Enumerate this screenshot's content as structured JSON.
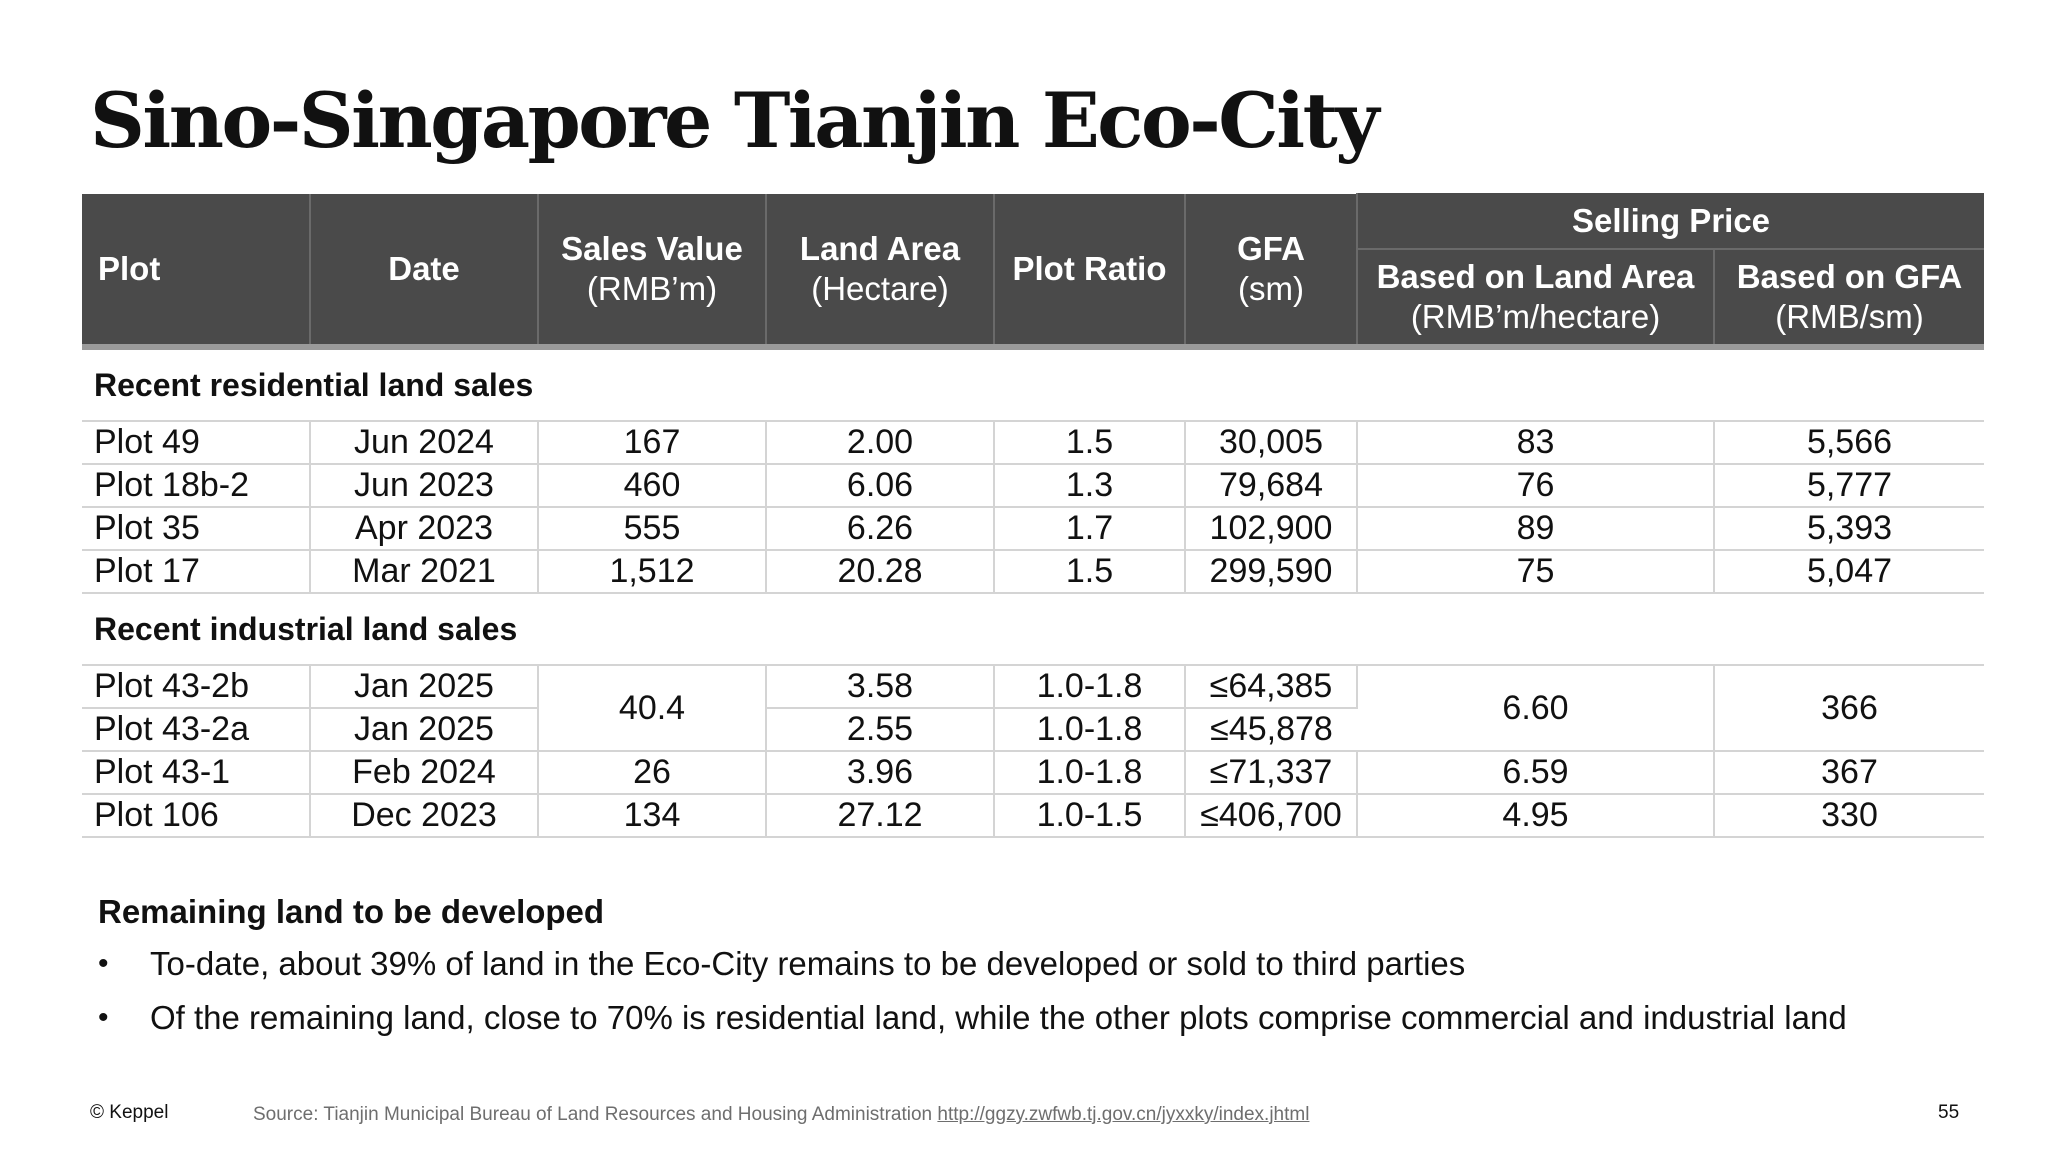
{
  "title": "Sino-Singapore Tianjin Eco-City",
  "table": {
    "headers": {
      "plot": "Plot",
      "date": "Date",
      "sales_value": "Sales Value",
      "sales_value_unit": "(RMB’m)",
      "land_area": "Land Area",
      "land_area_unit": "(Hectare)",
      "plot_ratio": "Plot Ratio",
      "gfa": "GFA",
      "gfa_unit": "(sm)",
      "selling_price": "Selling Price",
      "based_on_land_area": "Based on Land Area",
      "based_on_land_area_unit": "(RMB’m/hectare)",
      "based_on_gfa": "Based on GFA",
      "based_on_gfa_unit": "(RMB/sm)"
    },
    "residential_label": "Recent residential land sales",
    "residential": [
      {
        "plot": "Plot 49",
        "date": "Jun 2024",
        "sales": "167",
        "area": "2.00",
        "ratio": "1.5",
        "gfa": "30,005",
        "price_area": "83",
        "price_gfa": "5,566"
      },
      {
        "plot": "Plot 18b-2",
        "date": "Jun 2023",
        "sales": "460",
        "area": "6.06",
        "ratio": "1.3",
        "gfa": "79,684",
        "price_area": "76",
        "price_gfa": "5,777"
      },
      {
        "plot": "Plot 35",
        "date": "Apr 2023",
        "sales": "555",
        "area": "6.26",
        "ratio": "1.7",
        "gfa": "102,900",
        "price_area": "89",
        "price_gfa": "5,393"
      },
      {
        "plot": "Plot 17",
        "date": "Mar 2021",
        "sales": "1,512",
        "area": "20.28",
        "ratio": "1.5",
        "gfa": "299,590",
        "price_area": "75",
        "price_gfa": "5,047"
      }
    ],
    "industrial_label": "Recent industrial land sales",
    "industrial": {
      "plot_43_2b": {
        "plot": "Plot 43-2b",
        "date": "Jan 2025",
        "area": "3.58",
        "ratio": "1.0-1.8",
        "gfa": "≤64,385"
      },
      "plot_43_2a": {
        "plot": "Plot 43-2a",
        "date": "Jan 2025",
        "area": "2.55",
        "ratio": "1.0-1.8",
        "gfa": "≤45,878"
      },
      "plot_43_2_shared": {
        "sales": "40.4",
        "price_area": "6.60",
        "price_gfa": "366"
      },
      "plot_43_1": {
        "plot": "Plot 43-1",
        "date": "Feb 2024",
        "sales": "26",
        "area": "3.96",
        "ratio": "1.0-1.8",
        "gfa": "≤71,337",
        "price_area": "6.59",
        "price_gfa": "367"
      },
      "plot_106": {
        "plot": "Plot 106",
        "date": "Dec 2023",
        "sales": "134",
        "area": "27.12",
        "ratio": "1.0-1.5",
        "gfa": "≤406,700",
        "price_area": "4.95",
        "price_gfa": "330"
      }
    }
  },
  "remaining": {
    "heading": "Remaining land to be developed",
    "bullet_glyph": "•",
    "bullets": [
      "To-date, about 39% of land in the Eco-City remains to be developed or sold to third parties",
      "Of the remaining land, close to 70% is residential land, while the other plots comprise commercial and industrial land"
    ]
  },
  "footer": {
    "copyright": "© Keppel",
    "source_prefix": "Source: Tianjin Municipal Bureau of Land Resources and Housing Administration",
    "source_link": "http://ggzy.zwfwb.tj.gov.cn/jyxxky/index.jhtml",
    "page_number": "55"
  }
}
